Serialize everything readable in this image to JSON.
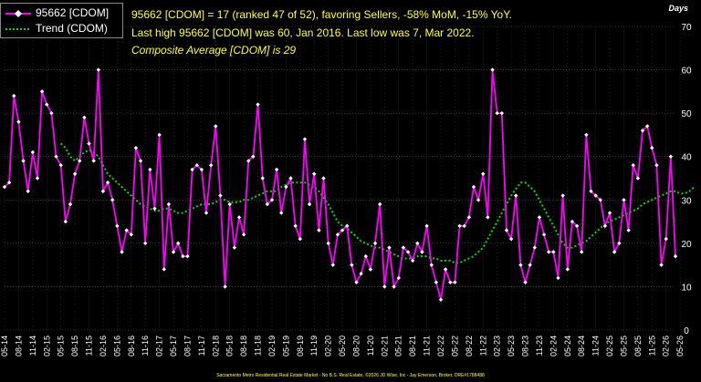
{
  "legend": {
    "series_label": "95662 [CDOM]",
    "trend_label": "Trend (CDOM)"
  },
  "info": {
    "line1": "95662 [CDOM] = 17 (ranked 47 of 52), favoring Sellers, -58% MoM, -15% YoY.",
    "line2": "Last high 95662 [CDOM] was 60, Jan 2016. Last low was 7, Mar 2022.",
    "line3": "Composite Average [CDOM] is 29"
  },
  "units_label": "Days",
  "footer": "Sacramento Metro Residential Real Estate Market - No B.S. Real Estate, ©2026 JD Wise, Inc - Jay Emerson, Broker, DRE#1788488",
  "colors": {
    "series": "#ff00ff",
    "trend": "#00dd00",
    "text": "#ffff33",
    "background": "#000000"
  },
  "chart_data": {
    "type": "line",
    "ylim": [
      0,
      70
    ],
    "yticks": [
      0,
      10,
      20,
      30,
      40,
      50,
      60,
      70
    ],
    "xtick_labels": [
      "05-14",
      "08-14",
      "11-14",
      "02-15",
      "05-15",
      "08-15",
      "11-15",
      "02-16",
      "05-16",
      "08-16",
      "11-16",
      "02-17",
      "05-17",
      "08-17",
      "11-17",
      "02-18",
      "05-18",
      "08-18",
      "11-18",
      "02-19",
      "05-19",
      "08-19",
      "11-19",
      "02-20",
      "05-20",
      "08-20",
      "11-20",
      "02-21",
      "05-21",
      "08-21",
      "11-21",
      "02-22",
      "05-22",
      "08-22",
      "11-22",
      "02-23",
      "05-23",
      "08-23",
      "11-23",
      "02-24",
      "05-24",
      "08-24",
      "11-24",
      "02-25",
      "05-25",
      "08-25",
      "11-25",
      "02-26",
      "05-26"
    ],
    "grid": true,
    "series": [
      {
        "name": "95662 [CDOM]",
        "values": [
          33,
          34,
          54,
          48,
          39,
          32,
          41,
          35,
          55,
          52,
          50,
          40,
          38,
          25,
          29,
          36,
          39,
          49,
          43,
          39,
          60,
          32,
          34,
          30,
          24,
          18,
          23,
          22,
          42,
          39,
          20,
          37,
          28,
          45,
          14,
          29,
          18,
          20,
          17,
          17,
          37,
          38,
          37,
          27,
          38,
          47,
          31,
          10,
          29,
          19,
          26,
          22,
          39,
          40,
          52,
          35,
          29,
          30,
          37,
          27,
          33,
          35,
          24,
          21,
          44,
          29,
          36,
          23,
          35,
          20,
          15,
          22,
          23,
          24,
          15,
          11,
          13,
          17,
          14,
          20,
          29,
          10,
          19,
          10,
          12,
          19,
          18,
          16,
          20,
          18,
          24,
          15,
          11,
          7,
          14,
          11,
          11,
          24,
          24,
          26,
          33,
          30,
          36,
          26,
          60,
          50,
          50,
          23,
          21,
          31,
          15,
          11,
          15,
          19,
          26,
          22,
          18,
          18,
          12,
          31,
          14,
          25,
          24,
          18,
          45,
          32,
          31,
          30,
          24,
          27,
          18,
          20,
          30,
          23,
          38,
          35,
          46,
          47,
          42,
          38,
          15,
          21,
          40,
          17
        ]
      },
      {
        "name": "Trend (CDOM)",
        "values": [
          null,
          null,
          null,
          null,
          null,
          null,
          null,
          null,
          null,
          null,
          null,
          null,
          43,
          42,
          40,
          39,
          40,
          41,
          41.5,
          41,
          40,
          38,
          36,
          35,
          34,
          33,
          32,
          31,
          30,
          29,
          28.5,
          28,
          27.5,
          27.5,
          28,
          28,
          27.5,
          27,
          27,
          27.5,
          28,
          28.5,
          29,
          29,
          29,
          29.5,
          30,
          30,
          29.5,
          29.5,
          29.5,
          30,
          30,
          30.5,
          31,
          31.5,
          32,
          32,
          32,
          33,
          33.5,
          34,
          34,
          34,
          34,
          33.5,
          33,
          32,
          30.5,
          29,
          27,
          25,
          24,
          23.5,
          22.5,
          21.5,
          20.5,
          20,
          19.5,
          19,
          19,
          18.5,
          18,
          17.5,
          17,
          16.5,
          16.5,
          16.5,
          17,
          17,
          17,
          16.5,
          16.5,
          16,
          16,
          16,
          15.5,
          15.5,
          16,
          16.5,
          17,
          18,
          19,
          21,
          23,
          25,
          27,
          29,
          31,
          32.5,
          34,
          34,
          33,
          32,
          30,
          28,
          26,
          24,
          22,
          20,
          19,
          19,
          19.5,
          20,
          20.5,
          21.5,
          22.5,
          23.5,
          24.5,
          25,
          25.5,
          26,
          26.5,
          27,
          27.5,
          28,
          29,
          29.5,
          30,
          30.5,
          31,
          31.5,
          32,
          32,
          31.5,
          31.5,
          32,
          33
        ]
      }
    ]
  }
}
